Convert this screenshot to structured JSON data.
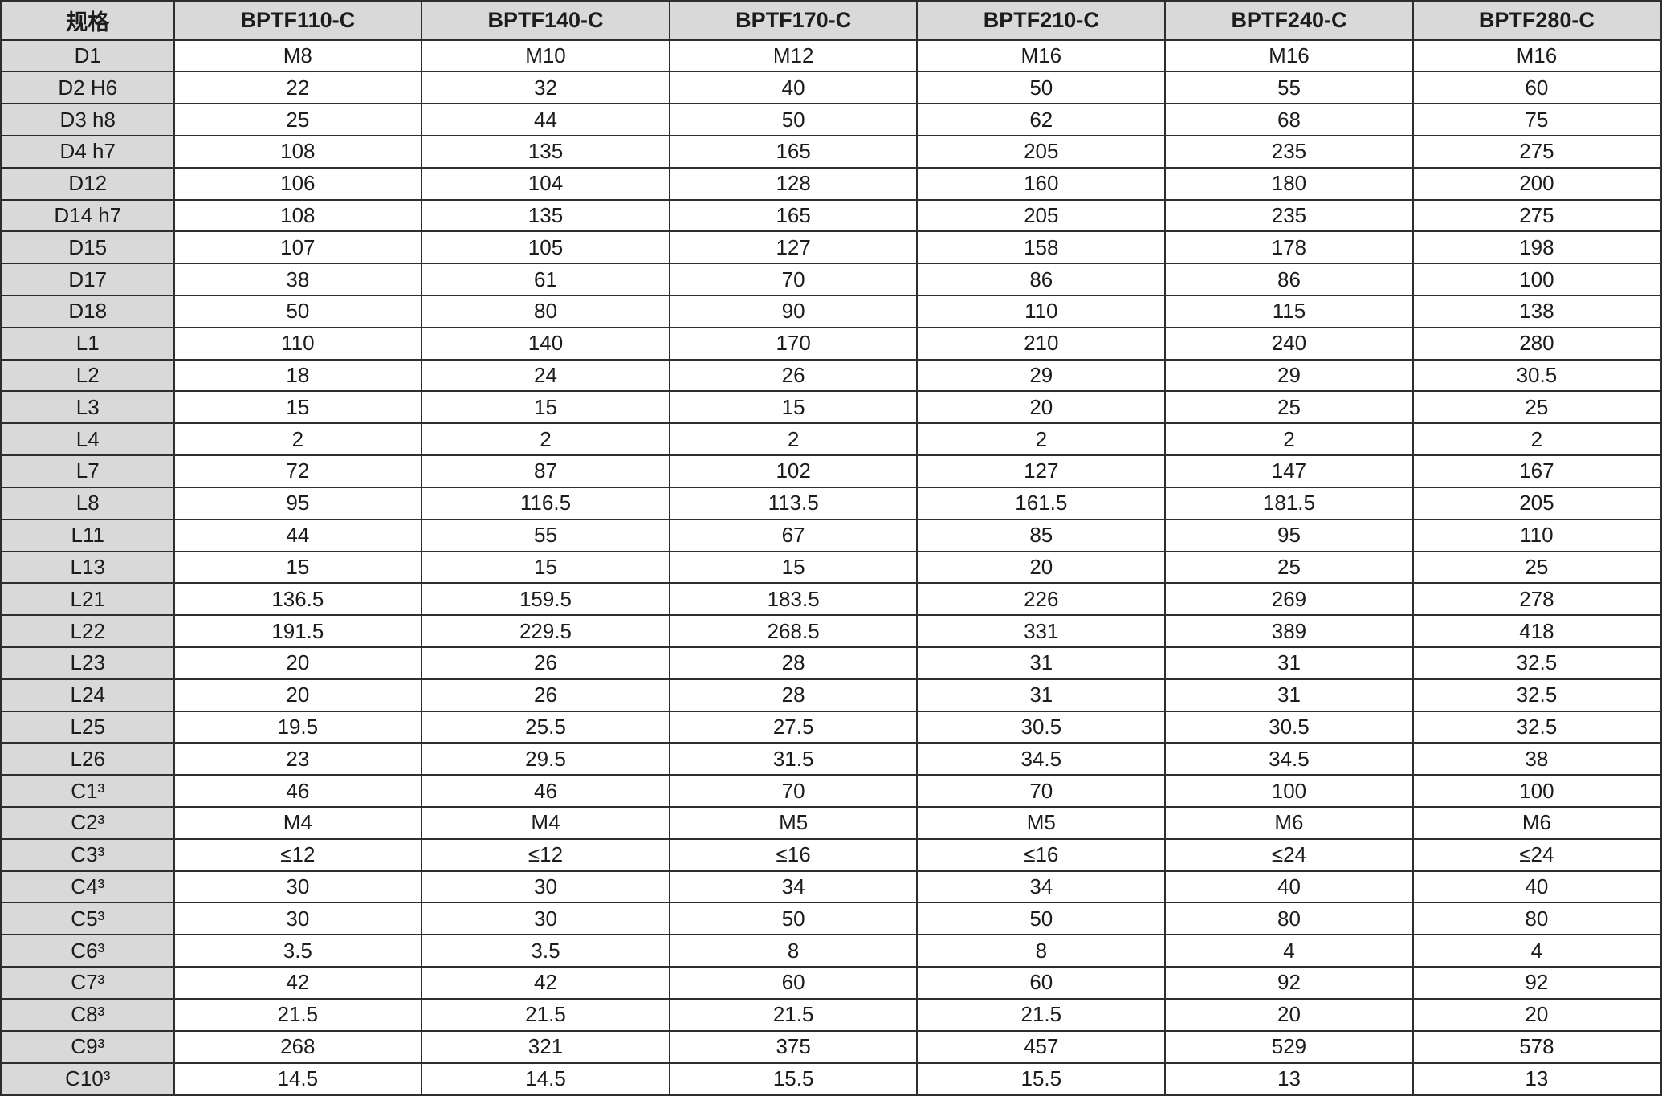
{
  "table": {
    "corner_label": "规格",
    "columns": [
      "BPTF110-C",
      "BPTF140-C",
      "BPTF170-C",
      "BPTF210-C",
      "BPTF240-C",
      "BPTF280-C"
    ],
    "rows": [
      {
        "label": "D1",
        "values": [
          "M8",
          "M10",
          "M12",
          "M16",
          "M16",
          "M16"
        ]
      },
      {
        "label": "D2 H6",
        "values": [
          "22",
          "32",
          "40",
          "50",
          "55",
          "60"
        ]
      },
      {
        "label": "D3 h8",
        "values": [
          "25",
          "44",
          "50",
          "62",
          "68",
          "75"
        ]
      },
      {
        "label": "D4 h7",
        "values": [
          "108",
          "135",
          "165",
          "205",
          "235",
          "275"
        ]
      },
      {
        "label": "D12",
        "values": [
          "106",
          "104",
          "128",
          "160",
          "180",
          "200"
        ]
      },
      {
        "label": "D14 h7",
        "values": [
          "108",
          "135",
          "165",
          "205",
          "235",
          "275"
        ]
      },
      {
        "label": "D15",
        "values": [
          "107",
          "105",
          "127",
          "158",
          "178",
          "198"
        ]
      },
      {
        "label": "D17",
        "values": [
          "38",
          "61",
          "70",
          "86",
          "86",
          "100"
        ]
      },
      {
        "label": "D18",
        "values": [
          "50",
          "80",
          "90",
          "110",
          "115",
          "138"
        ]
      },
      {
        "label": "L1",
        "values": [
          "110",
          "140",
          "170",
          "210",
          "240",
          "280"
        ]
      },
      {
        "label": "L2",
        "values": [
          "18",
          "24",
          "26",
          "29",
          "29",
          "30.5"
        ]
      },
      {
        "label": "L3",
        "values": [
          "15",
          "15",
          "15",
          "20",
          "25",
          "25"
        ]
      },
      {
        "label": "L4",
        "values": [
          "2",
          "2",
          "2",
          "2",
          "2",
          "2"
        ]
      },
      {
        "label": "L7",
        "values": [
          "72",
          "87",
          "102",
          "127",
          "147",
          "167"
        ]
      },
      {
        "label": "L8",
        "values": [
          "95",
          "116.5",
          "113.5",
          "161.5",
          "181.5",
          "205"
        ]
      },
      {
        "label": "L11",
        "values": [
          "44",
          "55",
          "67",
          "85",
          "95",
          "110"
        ]
      },
      {
        "label": "L13",
        "values": [
          "15",
          "15",
          "15",
          "20",
          "25",
          "25"
        ]
      },
      {
        "label": "L21",
        "values": [
          "136.5",
          "159.5",
          "183.5",
          "226",
          "269",
          "278"
        ]
      },
      {
        "label": "L22",
        "values": [
          "191.5",
          "229.5",
          "268.5",
          "331",
          "389",
          "418"
        ]
      },
      {
        "label": "L23",
        "values": [
          "20",
          "26",
          "28",
          "31",
          "31",
          "32.5"
        ]
      },
      {
        "label": "L24",
        "values": [
          "20",
          "26",
          "28",
          "31",
          "31",
          "32.5"
        ]
      },
      {
        "label": "L25",
        "values": [
          "19.5",
          "25.5",
          "27.5",
          "30.5",
          "30.5",
          "32.5"
        ]
      },
      {
        "label": "L26",
        "values": [
          "23",
          "29.5",
          "31.5",
          "34.5",
          "34.5",
          "38"
        ]
      },
      {
        "label": "C1³",
        "values": [
          "46",
          "46",
          "70",
          "70",
          "100",
          "100"
        ]
      },
      {
        "label": "C2³",
        "values": [
          "M4",
          "M4",
          "M5",
          "M5",
          "M6",
          "M6"
        ]
      },
      {
        "label": "C3³",
        "values": [
          "≤12",
          "≤12",
          "≤16",
          "≤16",
          "≤24",
          "≤24"
        ]
      },
      {
        "label": "C4³",
        "values": [
          "30",
          "30",
          "34",
          "34",
          "40",
          "40"
        ]
      },
      {
        "label": "C5³",
        "values": [
          "30",
          "30",
          "50",
          "50",
          "80",
          "80"
        ]
      },
      {
        "label": "C6³",
        "values": [
          "3.5",
          "3.5",
          "8",
          "8",
          "4",
          "4"
        ]
      },
      {
        "label": "C7³",
        "values": [
          "42",
          "42",
          "60",
          "60",
          "92",
          "92"
        ]
      },
      {
        "label": "C8³",
        "values": [
          "21.5",
          "21.5",
          "21.5",
          "21.5",
          "20",
          "20"
        ]
      },
      {
        "label": "C9³",
        "values": [
          "268",
          "321",
          "375",
          "457",
          "529",
          "578"
        ]
      },
      {
        "label": "C10³",
        "values": [
          "14.5",
          "14.5",
          "15.5",
          "15.5",
          "13",
          "13"
        ]
      }
    ],
    "colors": {
      "header_bg": "#d9d9d9",
      "label_bg": "#d9d9d9",
      "cell_bg": "#ffffff",
      "border": "#2e2e2e",
      "text": "#1c1c1c"
    }
  }
}
